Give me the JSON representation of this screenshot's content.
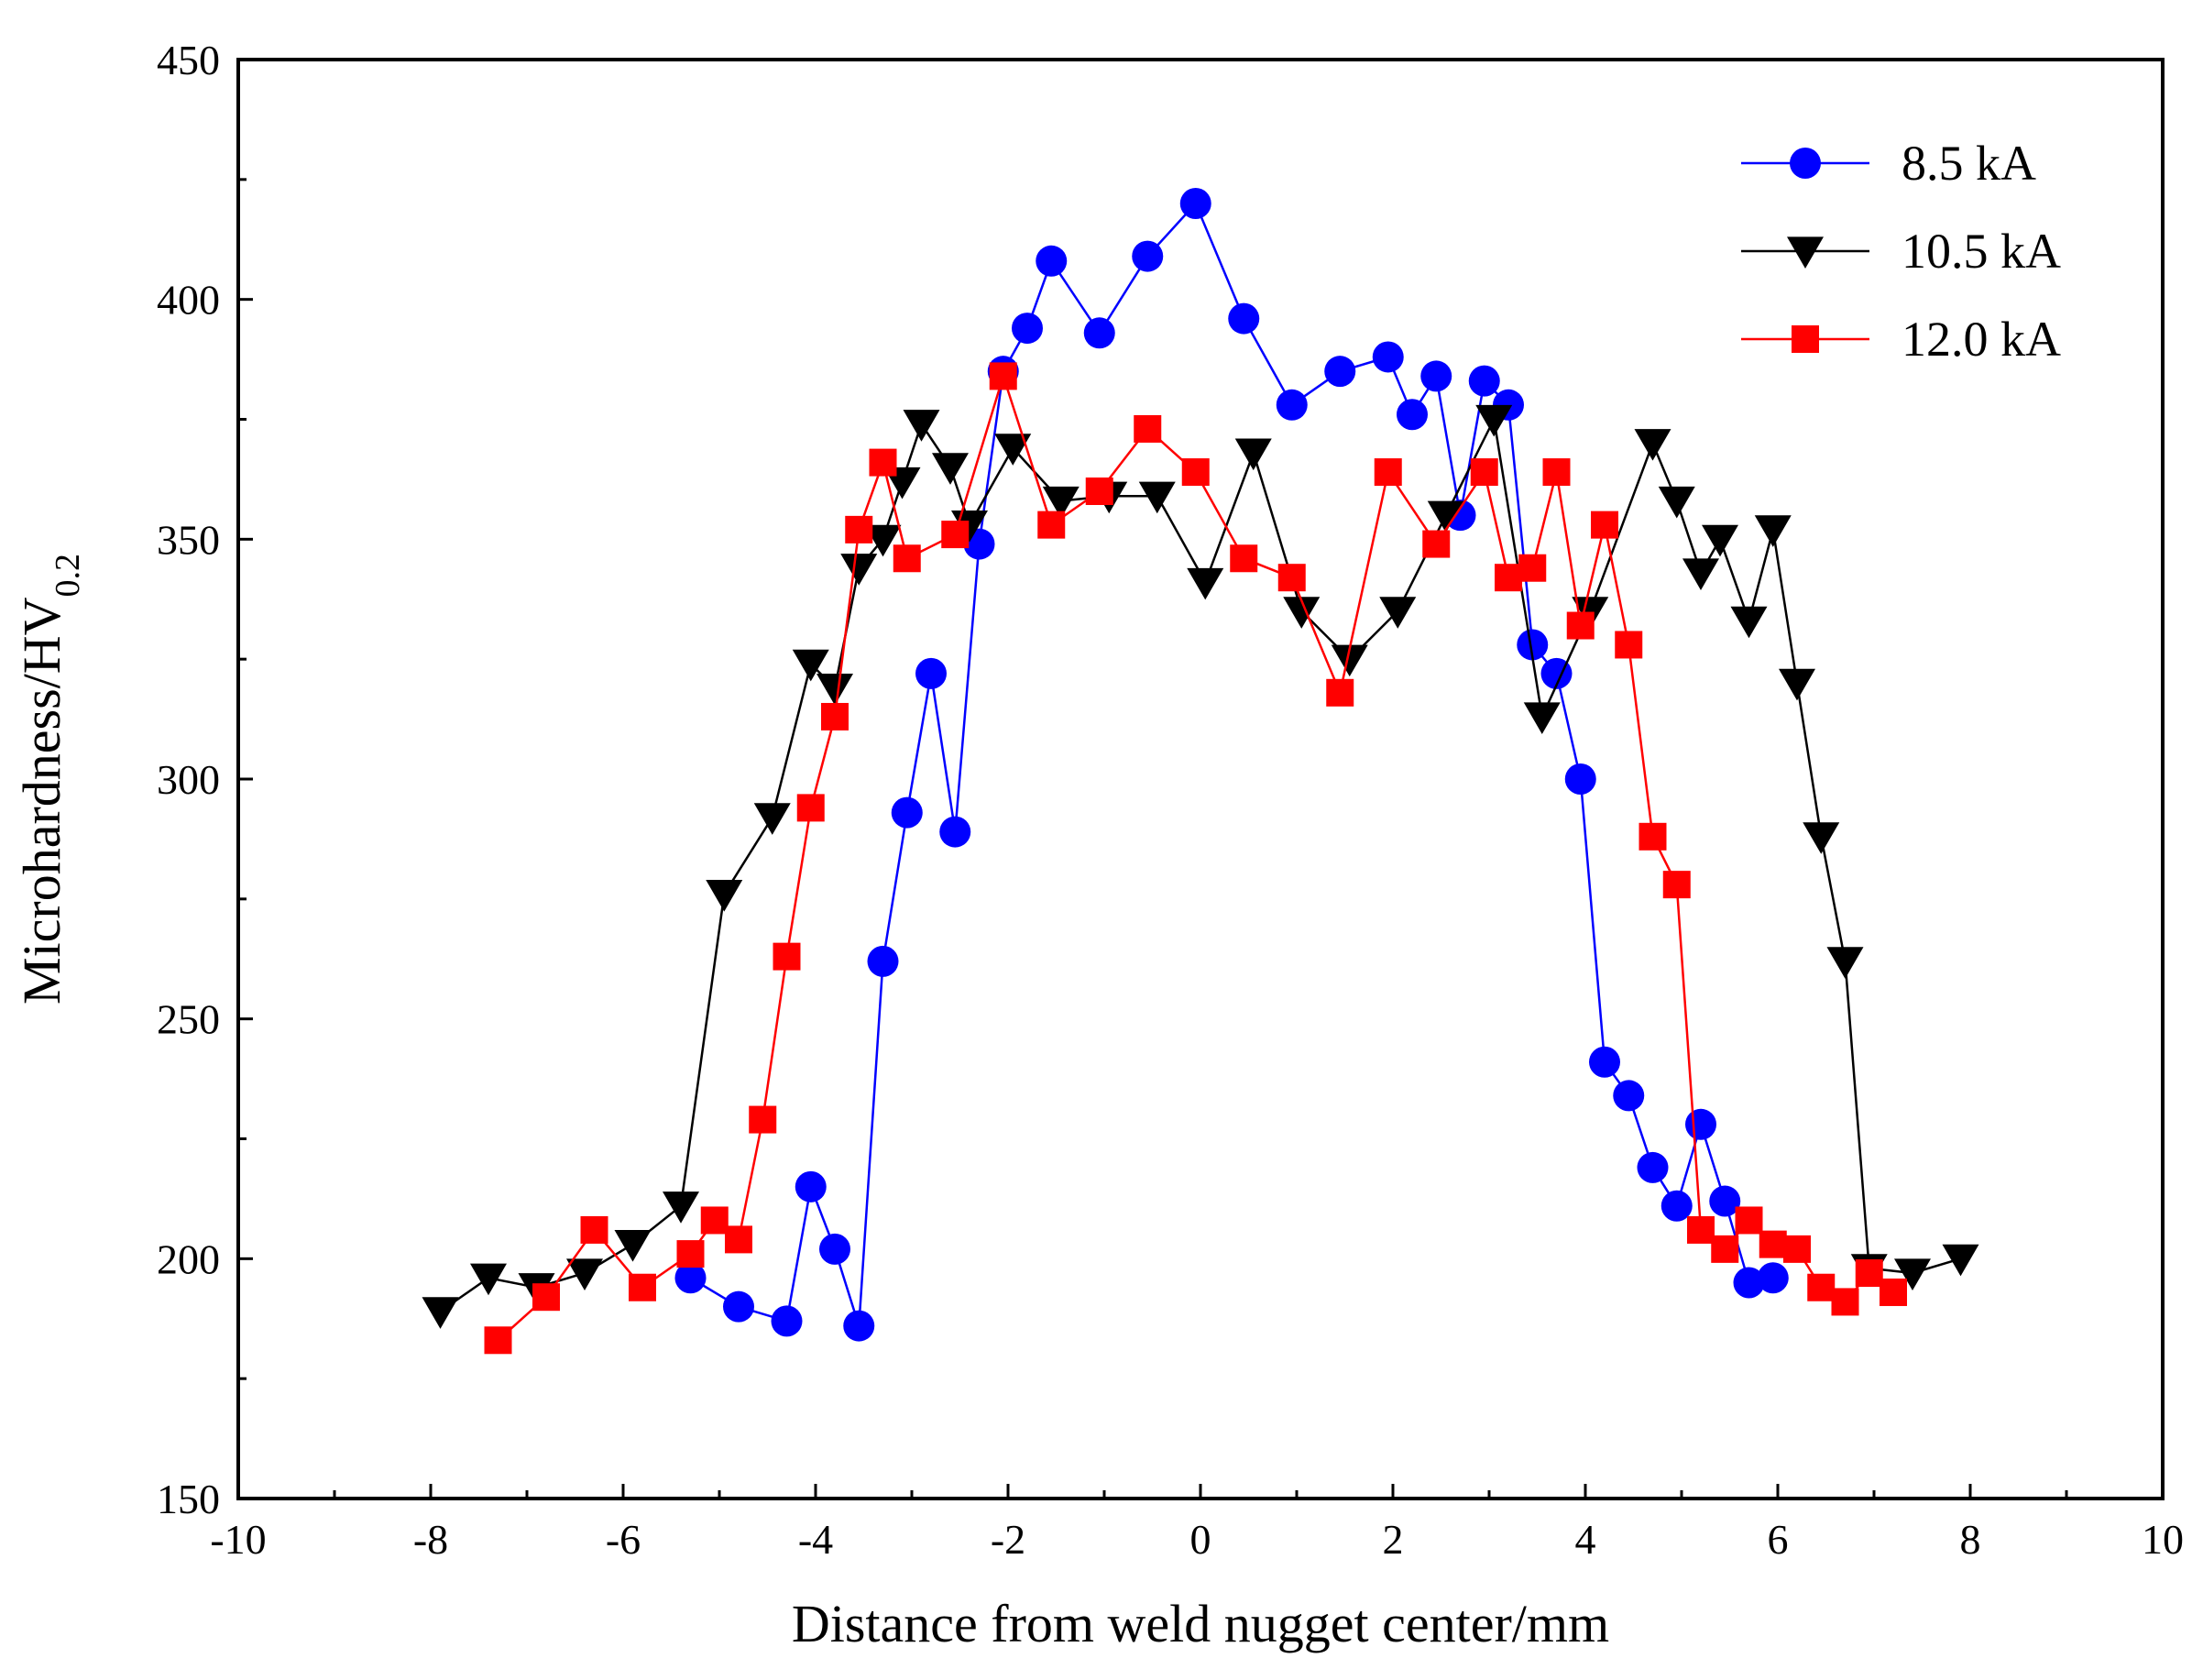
{
  "chart_data": {
    "type": "line",
    "title": "",
    "xlabel": "Distance from weld nugget center/mm",
    "ylabel": {
      "main": "Microhardness/HV",
      "subscript": "0.2"
    },
    "xlim": [
      -10,
      10
    ],
    "ylim": [
      150,
      450
    ],
    "xticks": [
      -10,
      -8,
      -6,
      -4,
      -2,
      0,
      2,
      4,
      6,
      8,
      10
    ],
    "yticks": [
      150,
      200,
      250,
      300,
      350,
      400,
      450
    ],
    "xtick_labels": [
      "-10",
      "-8",
      "-6",
      "-4",
      "-2",
      "0",
      "2",
      "4",
      "6",
      "8",
      "10"
    ],
    "ytick_labels": [
      "150",
      "200",
      "250",
      "300",
      "350",
      "400",
      "450"
    ],
    "legend_position": "top-right",
    "series": [
      {
        "name": "8.5 kA",
        "color": "#0000ff",
        "marker": "circle",
        "x": [
          -5.3,
          -4.8,
          -4.3,
          -4.05,
          -3.8,
          -3.55,
          -3.3,
          -3.05,
          -2.8,
          -2.55,
          -2.3,
          -2.05,
          -1.8,
          -1.55,
          -1.05,
          -0.55,
          -0.05,
          0.45,
          0.95,
          1.45,
          1.95,
          2.2,
          2.45,
          2.7,
          2.95,
          3.2,
          3.45,
          3.7,
          3.95,
          4.2,
          4.45,
          4.7,
          4.95,
          5.2,
          5.45,
          5.7,
          5.95
        ],
        "y": [
          196,
          190,
          187,
          215,
          202,
          186,
          262,
          293,
          322,
          289,
          349,
          385,
          394,
          408,
          393,
          409,
          420,
          396,
          378,
          385,
          388,
          376,
          384,
          355,
          383,
          378,
          328,
          322,
          300,
          241,
          234,
          219,
          211,
          228,
          212,
          195,
          196
        ]
      },
      {
        "name": "10.5 kA",
        "color": "#000000",
        "marker": "triangle-down",
        "x": [
          -7.9,
          -7.4,
          -6.9,
          -6.4,
          -5.9,
          -5.4,
          -4.95,
          -4.45,
          -4.05,
          -3.8,
          -3.55,
          -3.3,
          -3.1,
          -2.9,
          -2.6,
          -2.4,
          -1.95,
          -1.45,
          -0.95,
          -0.45,
          0.05,
          0.55,
          1.05,
          1.55,
          2.05,
          2.55,
          3.05,
          3.55,
          4.05,
          4.7,
          4.95,
          5.2,
          5.4,
          5.7,
          5.95,
          6.2,
          6.45,
          6.7,
          6.95,
          7.4,
          7.9
        ],
        "y": [
          189,
          196,
          194,
          197,
          203,
          211,
          276,
          292,
          324,
          319,
          344,
          350,
          362,
          374,
          365,
          353,
          369,
          358,
          359,
          359,
          341,
          368,
          335,
          325,
          335,
          355,
          375,
          313,
          335,
          370,
          358,
          343,
          350,
          333,
          352,
          320,
          288,
          262,
          198,
          197,
          200
        ]
      },
      {
        "name": "12.0 kA",
        "color": "#ff0000",
        "marker": "square",
        "x": [
          -7.3,
          -6.8,
          -6.3,
          -5.8,
          -5.3,
          -5.05,
          -4.8,
          -4.55,
          -4.3,
          -4.05,
          -3.8,
          -3.55,
          -3.3,
          -3.05,
          -2.55,
          -2.05,
          -1.55,
          -1.05,
          -0.55,
          -0.05,
          0.45,
          0.95,
          1.45,
          1.95,
          2.45,
          2.95,
          3.2,
          3.45,
          3.7,
          3.95,
          4.2,
          4.45,
          4.7,
          4.95,
          5.2,
          5.45,
          5.7,
          5.95,
          6.2,
          6.45,
          6.7,
          6.95,
          7.2
        ],
        "y": [
          183,
          192,
          206,
          194,
          201,
          208,
          204,
          229,
          263,
          294,
          313,
          352,
          366,
          346,
          351,
          384,
          353,
          360,
          373,
          364,
          346,
          342,
          318,
          364,
          349,
          364,
          342,
          344,
          364,
          332,
          353,
          328,
          288,
          278,
          206,
          202,
          208,
          203,
          202,
          194,
          191,
          197,
          193
        ]
      }
    ]
  }
}
